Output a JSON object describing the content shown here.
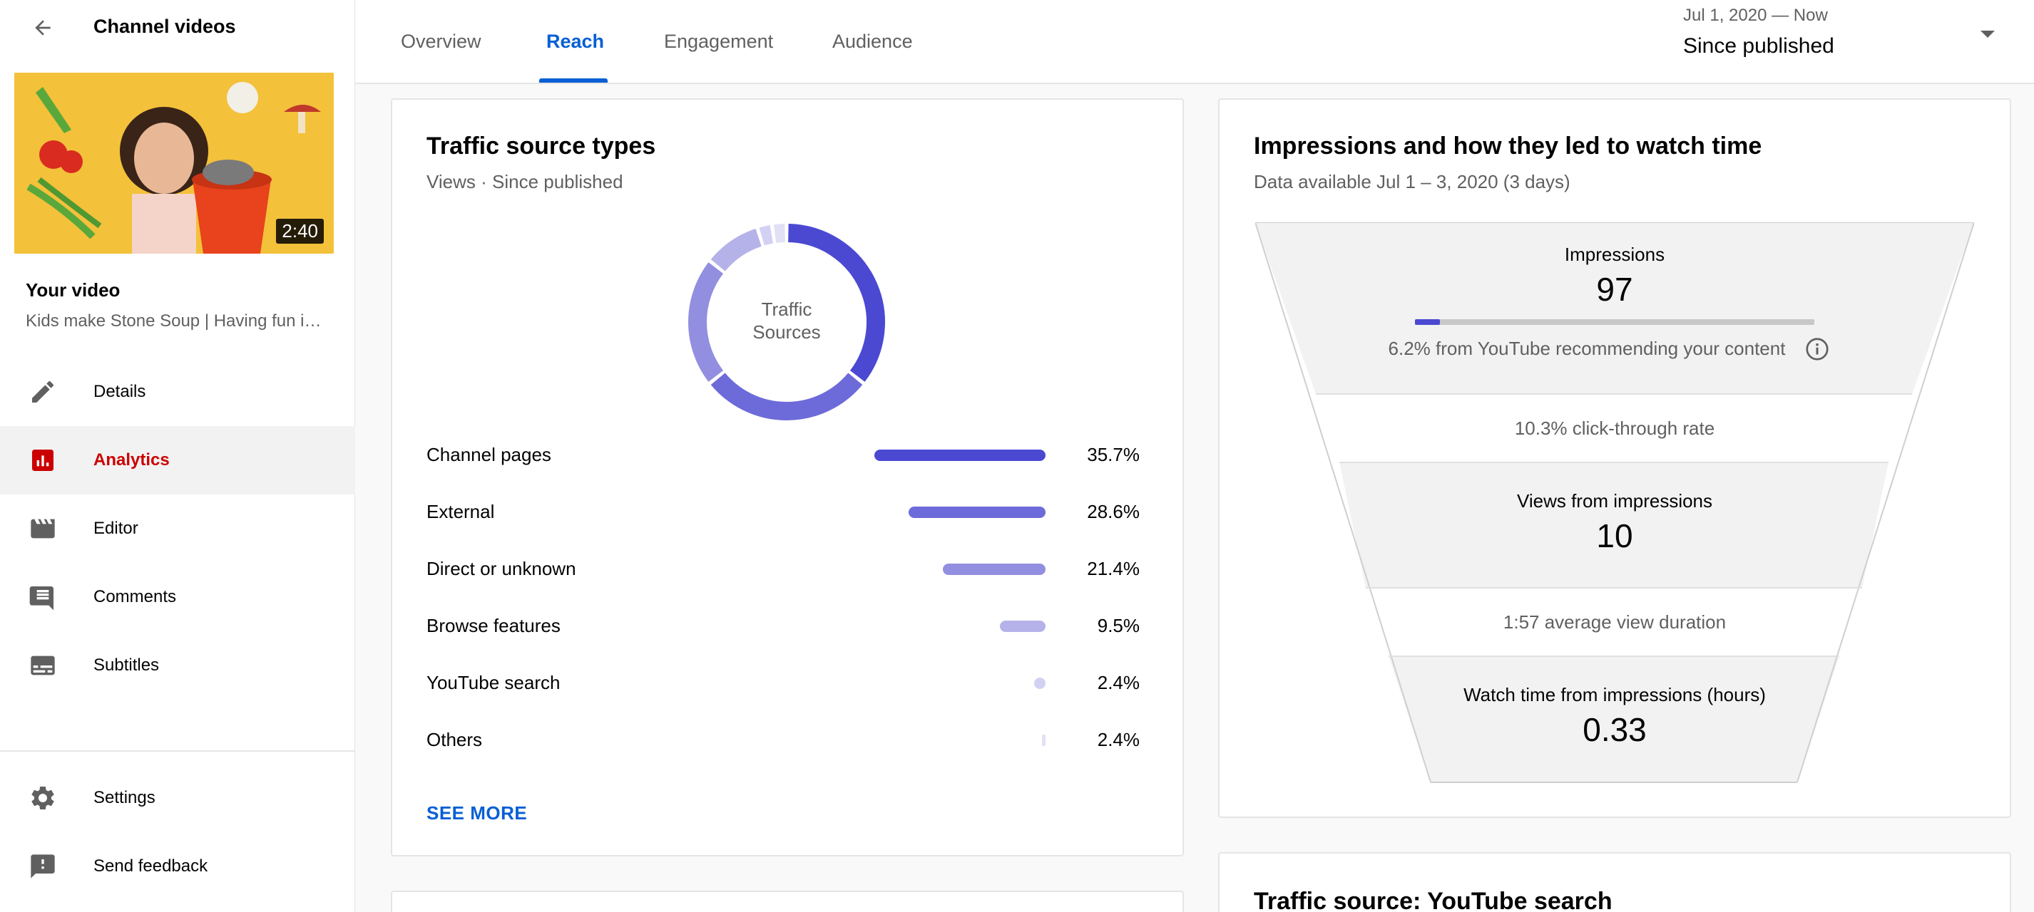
{
  "sidebar": {
    "title": "Channel videos",
    "thumbnail_duration": "2:40",
    "your_video_label": "Your video",
    "video_name": "Kids make Stone Soup | Having fun in the kitchen",
    "nav": [
      {
        "label": "Details",
        "icon": "pencil-icon"
      },
      {
        "label": "Analytics",
        "icon": "analytics-icon",
        "active": true
      },
      {
        "label": "Editor",
        "icon": "clapperboard-icon"
      },
      {
        "label": "Comments",
        "icon": "comment-icon"
      },
      {
        "label": "Subtitles",
        "icon": "subtitles-icon"
      }
    ],
    "bottom_nav": [
      {
        "label": "Settings",
        "icon": "gear-icon"
      },
      {
        "label": "Send feedback",
        "icon": "feedback-icon"
      }
    ]
  },
  "tabs": [
    {
      "label": "Overview"
    },
    {
      "label": "Reach",
      "active": true
    },
    {
      "label": "Engagement"
    },
    {
      "label": "Audience"
    }
  ],
  "date_range": {
    "range": "Jul 1, 2020 — Now",
    "label": "Since published"
  },
  "traffic_card": {
    "title": "Traffic source types",
    "subtitle": "Views · Since published",
    "donut_center": "Traffic Sources",
    "see_more": "SEE MORE",
    "colors": {
      "channel_pages": "#4b49d2",
      "external": "#6d6ad9",
      "direct": "#928fe0",
      "browse": "#b5b2ea",
      "youtube_search": "#d3d1f3",
      "others": "#e1e0f5"
    }
  },
  "chart_data": {
    "type": "bar",
    "categories": [
      "Channel pages",
      "External",
      "Direct or unknown",
      "Browse features",
      "YouTube search",
      "Others"
    ],
    "values": [
      35.7,
      28.6,
      21.4,
      9.5,
      2.4,
      2.4
    ],
    "value_labels": [
      "35.7%",
      "28.6%",
      "21.4%",
      "9.5%",
      "2.4%",
      "2.4%"
    ],
    "unit": "%"
  },
  "impressions_card": {
    "title": "Impressions and how they led to watch time",
    "subtitle": "Data available Jul 1 – 3, 2020 (3 days)",
    "impressions_label": "Impressions",
    "impressions_value": "97",
    "recommend_text": "6.2% from YouTube recommending your content",
    "recommend_fraction": 0.062,
    "ctr_text": "10.3% click-through rate",
    "views_label": "Views from impressions",
    "views_value": "10",
    "avd_text": "1:57 average view duration",
    "watch_label": "Watch time from impressions (hours)",
    "watch_value": "0.33"
  },
  "search_card": {
    "title": "Traffic source: YouTube search"
  }
}
